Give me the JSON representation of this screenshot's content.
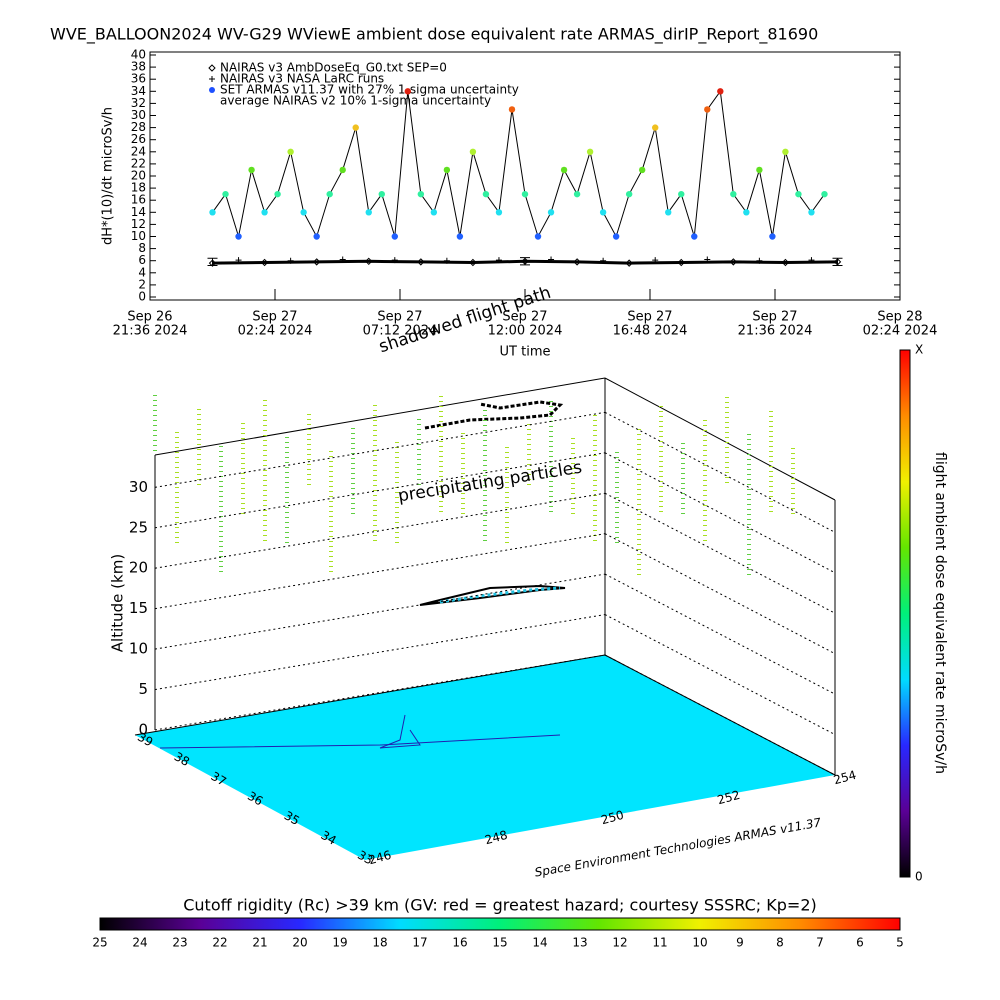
{
  "title": "WVE_BALLOON2024 WV-G29 WViewE ambient dose equivalent rate ARMAS_dirIP_Report_81690",
  "chart_data": [
    {
      "type": "line",
      "ylabel": "dH*(10)/dt microSv/h",
      "xlabel": "UT time",
      "xlim": [
        0,
        28.8
      ],
      "xticks": [
        {
          "value": 0,
          "label": [
            "Sep 26",
            "21:36 2024"
          ]
        },
        {
          "value": 4.8,
          "label": [
            "Sep 27",
            "02:24 2024"
          ]
        },
        {
          "value": 9.6,
          "label": [
            "Sep 27",
            "07:12 2024"
          ]
        },
        {
          "value": 14.4,
          "label": [
            "Sep 27",
            "12:00 2024"
          ]
        },
        {
          "value": 19.2,
          "label": [
            "Sep 27",
            "16:48 2024"
          ]
        },
        {
          "value": 24,
          "label": [
            "Sep 27",
            "21:36 2024"
          ]
        },
        {
          "value": 28.8,
          "label": [
            "Sep 28",
            "02:24 2024"
          ]
        }
      ],
      "ylim": [
        0,
        40
      ],
      "yticks": [
        0,
        2,
        4,
        6,
        8,
        10,
        12,
        14,
        16,
        18,
        20,
        22,
        24,
        26,
        28,
        30,
        32,
        34,
        36,
        38,
        40
      ],
      "series": [
        {
          "name": "NAIRAS v3 AmbDoseEq_G0.txt SEP=0",
          "marker": "diamond",
          "color": "#000000",
          "x": [
            2.4,
            4.4,
            6.4,
            8.4,
            10.4,
            12.4,
            14.4,
            16.4,
            18.4,
            20.4,
            22.4,
            24.4,
            26.4
          ],
          "values": [
            5.6,
            5.7,
            5.8,
            5.9,
            5.8,
            5.7,
            5.9,
            5.8,
            5.6,
            5.7,
            5.8,
            5.7,
            5.8
          ]
        },
        {
          "name": "NAIRAS v3 NASA LaRC runs",
          "marker": "plus",
          "color": "#000000",
          "x": [
            3.4,
            5.4,
            7.4,
            9.4,
            11.4,
            13.4,
            15.4,
            17.4,
            19.4,
            21.4,
            23.4,
            25.4
          ],
          "values": [
            6.1,
            6.0,
            6.2,
            6.1,
            6.0,
            6.1,
            6.2,
            6.0,
            6.1,
            6.2,
            6.0,
            6.1
          ]
        },
        {
          "name": "SET ARMAS v11.37 with 27% 1-sigma uncertainty",
          "marker": "circle",
          "color": "#1e50ff",
          "x": [
            2.4,
            2.9,
            3.4,
            3.9,
            4.4,
            4.9,
            5.4,
            5.9,
            6.4,
            6.9,
            7.4,
            7.9,
            8.4,
            8.9,
            9.4,
            9.9,
            10.4,
            10.9,
            11.4,
            11.9,
            12.4,
            12.9,
            13.4,
            13.9,
            14.4,
            14.9,
            15.4,
            15.9,
            16.4,
            16.9,
            17.4,
            17.9,
            18.4,
            18.9,
            19.4,
            19.9,
            20.4,
            20.9,
            21.4,
            21.9,
            22.4,
            22.9,
            23.4,
            23.9,
            24.4,
            24.9,
            25.4,
            25.9
          ],
          "values": [
            14,
            17,
            10,
            21,
            14,
            17,
            24,
            14,
            10,
            17,
            21,
            28,
            14,
            17,
            10,
            34,
            17,
            14,
            21,
            10,
            24,
            17,
            14,
            31,
            17,
            10,
            14,
            21,
            17,
            24,
            14,
            10,
            17,
            21,
            28,
            14,
            17,
            10,
            31,
            34,
            17,
            14,
            21,
            10,
            24,
            17,
            14,
            17
          ],
          "colors": [
            "#20e0f0",
            "#30f0a0",
            "#2060ff",
            "#60e020",
            "#20e0f0",
            "#30f0a0",
            "#b0f030",
            "#20e0f0",
            "#2060ff",
            "#30f0a0",
            "#60e020",
            "#f0c020",
            "#20e0f0",
            "#30f0a0",
            "#2060ff",
            "#e02010",
            "#30f0a0",
            "#20e0f0",
            "#60e020",
            "#2060ff",
            "#b0f030",
            "#30f0a0",
            "#20e0f0",
            "#f06010",
            "#30f0a0",
            "#2060ff",
            "#20e0f0",
            "#60e020",
            "#30f0a0",
            "#b0f030",
            "#20e0f0",
            "#2060ff",
            "#30f0a0",
            "#60e020",
            "#f0c020",
            "#20e0f0",
            "#30f0a0",
            "#2060ff",
            "#f06010",
            "#e02010",
            "#30f0a0",
            "#20e0f0",
            "#60e020",
            "#2060ff",
            "#b0f030",
            "#30f0a0",
            "#20e0f0",
            "#30f0a0"
          ]
        },
        {
          "name": "average NAIRAS v2 10% 1-sigma uncertainty",
          "marker": "errorbar",
          "color": "#000000",
          "x": [
            2.4,
            14.4,
            26.4
          ],
          "values": [
            5.8,
            5.9,
            5.8
          ],
          "errors": [
            0.6,
            0.6,
            0.6
          ]
        }
      ]
    },
    {
      "type": "surface3d",
      "zlabel": "Altitude (km)",
      "zlim": [
        0,
        34
      ],
      "zticks": [
        0,
        5,
        10,
        15,
        20,
        25,
        30
      ],
      "lat_ticks": [
        39,
        38,
        37,
        36,
        35,
        34,
        33
      ],
      "lon_ticks": [
        246,
        248,
        250,
        252,
        254
      ],
      "floor_color": "#00e5ff",
      "annotations": [
        "precipitating particles",
        "shadowed flight path",
        "Space Environment Technologies ARMAS v11.37"
      ]
    },
    {
      "type": "colorbar",
      "label": "flight ambient dose equivalent rate microSv/h",
      "lim": [
        0,
        1
      ],
      "ticks": [
        {
          "value": 1,
          "label": "X"
        },
        0
      ],
      "colors": [
        "#000000",
        "#5a0096",
        "#2828ff",
        "#00dcff",
        "#00f07a",
        "#64e600",
        "#f0f000",
        "#ff8c00",
        "#ff0000"
      ]
    },
    {
      "type": "colorbar",
      "title": "Cutoff rigidity (Rc) >39 km (GV: red = greatest hazard; courtesy SSSRC; Kp=2)",
      "lim": [
        25,
        5
      ],
      "ticks": [
        25,
        24,
        23,
        22,
        21,
        20,
        19,
        18,
        17,
        16,
        15,
        14,
        13,
        12,
        11,
        10,
        9,
        8,
        7,
        6,
        5
      ],
      "colors": [
        "#000000",
        "#5a0096",
        "#2828ff",
        "#00dcff",
        "#00f07a",
        "#64e600",
        "#f0f000",
        "#ff8c00",
        "#ff0000"
      ]
    }
  ]
}
